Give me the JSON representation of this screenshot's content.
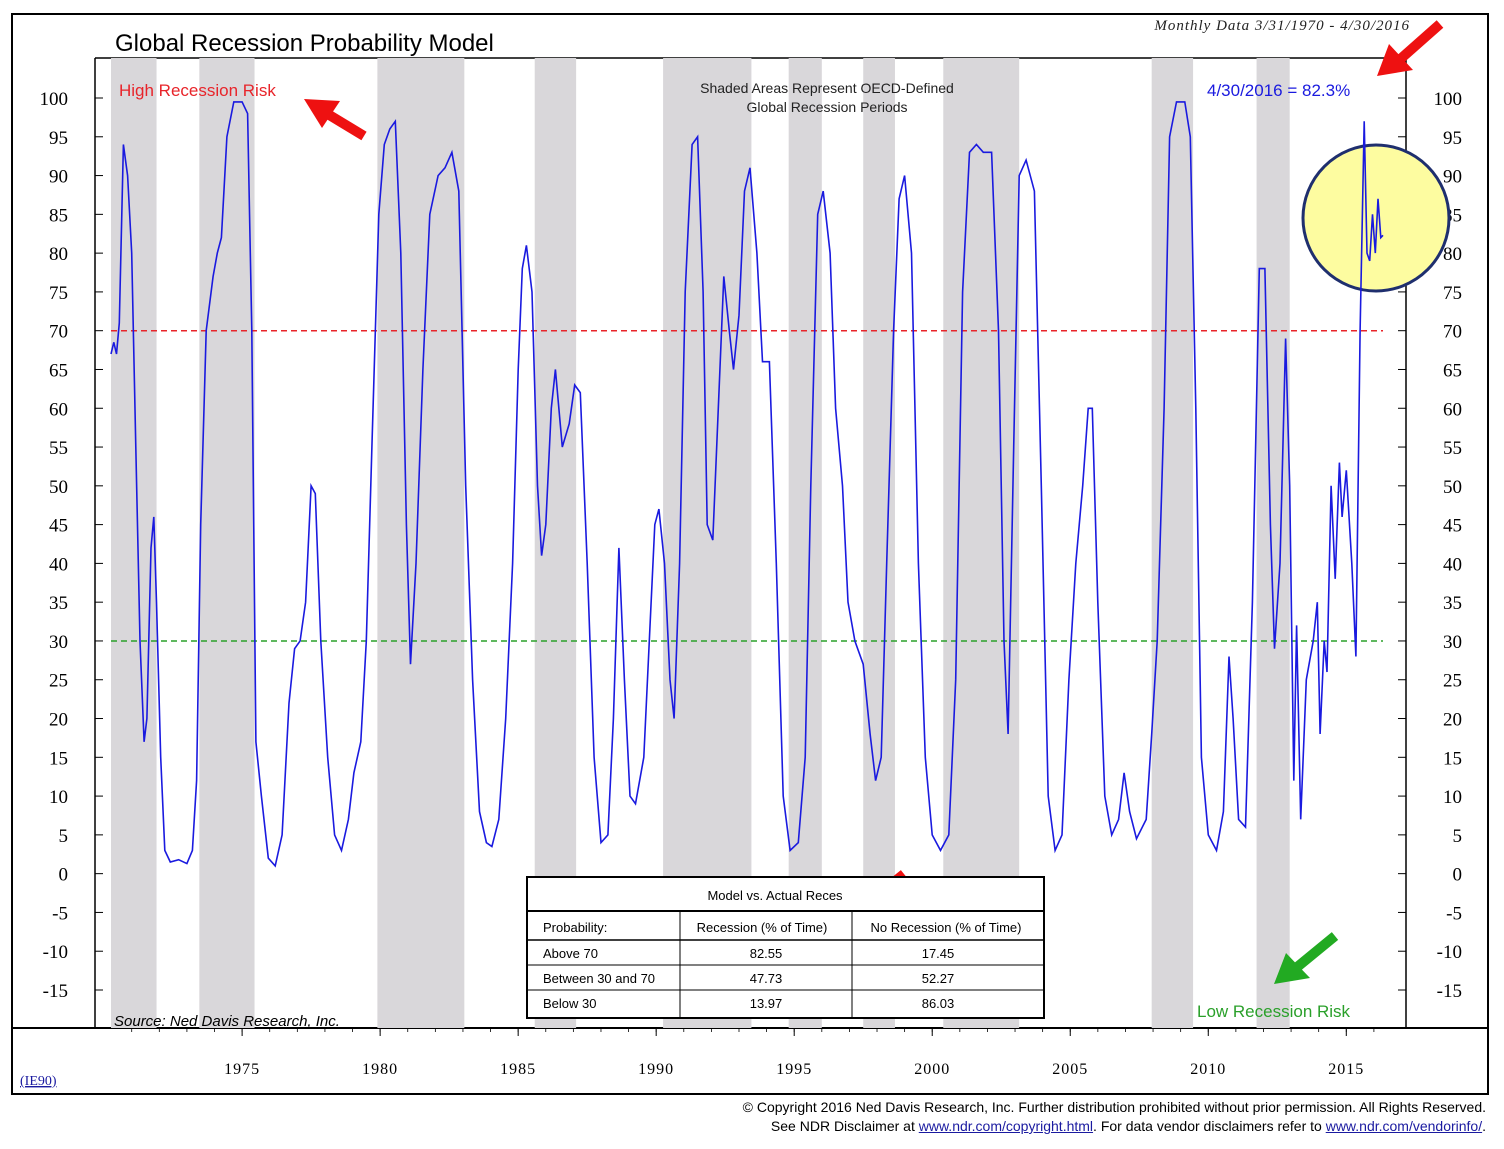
{
  "chart_data": {
    "type": "line",
    "title": "Global Recession Probability Model",
    "data_range": "Monthly Data 3/31/1970 - 4/30/2016",
    "code": "(IE90)",
    "source": "Source: Ned Davis Research, Inc.",
    "ylim": [
      -15,
      100
    ],
    "y_ticks": [
      "100",
      "95",
      "90",
      "85",
      "80",
      "75",
      "70",
      "65",
      "60",
      "55",
      "50",
      "45",
      "40",
      "35",
      "30",
      "25",
      "20",
      "15",
      "10",
      "5",
      "0",
      "-5",
      "-10",
      "-15"
    ],
    "x_ticks": [
      "1975",
      "1980",
      "1985",
      "1990",
      "1995",
      "2000",
      "2005",
      "2010",
      "2015"
    ],
    "xlim": [
      1970.25,
      2016.33
    ],
    "thresholds": [
      {
        "value": 70,
        "color": "#e8242a"
      },
      {
        "value": 30,
        "color": "#2aa02a"
      }
    ],
    "recession_periods": [
      [
        1970.25,
        1971.9
      ],
      [
        1973.45,
        1975.45
      ],
      [
        1979.9,
        1983.05
      ],
      [
        1985.6,
        1987.1
      ],
      [
        1990.25,
        1993.45
      ],
      [
        1994.8,
        1996.0
      ],
      [
        1997.5,
        1998.65
      ],
      [
        2000.4,
        2003.15
      ],
      [
        2007.95,
        2009.45
      ],
      [
        2011.75,
        2012.95
      ]
    ],
    "series": [
      {
        "color": "#1a1adf",
        "points": [
          [
            1970.25,
            67
          ],
          [
            1970.35,
            68.5
          ],
          [
            1970.45,
            67
          ],
          [
            1970.55,
            71
          ],
          [
            1970.7,
            94
          ],
          [
            1970.85,
            90
          ],
          [
            1971.0,
            80
          ],
          [
            1971.15,
            55
          ],
          [
            1971.3,
            30
          ],
          [
            1971.45,
            17
          ],
          [
            1971.55,
            20
          ],
          [
            1971.7,
            42
          ],
          [
            1971.8,
            46
          ],
          [
            1971.9,
            35
          ],
          [
            1972.05,
            15
          ],
          [
            1972.2,
            3
          ],
          [
            1972.4,
            1.5
          ],
          [
            1972.7,
            1.8
          ],
          [
            1973.0,
            1.3
          ],
          [
            1973.2,
            3
          ],
          [
            1973.35,
            12
          ],
          [
            1973.5,
            45
          ],
          [
            1973.7,
            70
          ],
          [
            1973.95,
            77
          ],
          [
            1974.1,
            80
          ],
          [
            1974.25,
            82
          ],
          [
            1974.45,
            95
          ],
          [
            1974.7,
            99.5
          ],
          [
            1975.0,
            99.5
          ],
          [
            1975.2,
            98
          ],
          [
            1975.35,
            70
          ],
          [
            1975.5,
            17
          ],
          [
            1975.7,
            10
          ],
          [
            1975.95,
            2
          ],
          [
            1976.2,
            1
          ],
          [
            1976.45,
            5
          ],
          [
            1976.7,
            22
          ],
          [
            1976.9,
            29
          ],
          [
            1977.1,
            30
          ],
          [
            1977.3,
            35
          ],
          [
            1977.5,
            50
          ],
          [
            1977.65,
            49
          ],
          [
            1977.85,
            30
          ],
          [
            1978.1,
            15
          ],
          [
            1978.35,
            5
          ],
          [
            1978.6,
            3
          ],
          [
            1978.85,
            7
          ],
          [
            1979.05,
            13
          ],
          [
            1979.3,
            17
          ],
          [
            1979.5,
            30
          ],
          [
            1979.7,
            55
          ],
          [
            1979.95,
            85
          ],
          [
            1980.15,
            94
          ],
          [
            1980.35,
            96
          ],
          [
            1980.55,
            97
          ],
          [
            1980.75,
            80
          ],
          [
            1980.95,
            45
          ],
          [
            1981.1,
            27
          ],
          [
            1981.3,
            40
          ],
          [
            1981.55,
            65
          ],
          [
            1981.8,
            85
          ],
          [
            1982.1,
            90
          ],
          [
            1982.35,
            91
          ],
          [
            1982.6,
            93
          ],
          [
            1982.85,
            88
          ],
          [
            1983.1,
            50
          ],
          [
            1983.35,
            25
          ],
          [
            1983.6,
            8
          ],
          [
            1983.85,
            4
          ],
          [
            1984.05,
            3.5
          ],
          [
            1984.3,
            7
          ],
          [
            1984.55,
            20
          ],
          [
            1984.8,
            40
          ],
          [
            1985.0,
            65
          ],
          [
            1985.15,
            78
          ],
          [
            1985.3,
            81
          ],
          [
            1985.5,
            75
          ],
          [
            1985.7,
            50
          ],
          [
            1985.85,
            41
          ],
          [
            1986.0,
            45
          ],
          [
            1986.2,
            60
          ],
          [
            1986.35,
            65
          ],
          [
            1986.6,
            55
          ],
          [
            1986.85,
            58
          ],
          [
            1987.05,
            63
          ],
          [
            1987.25,
            62
          ],
          [
            1987.5,
            40
          ],
          [
            1987.75,
            15
          ],
          [
            1988.0,
            4
          ],
          [
            1988.25,
            5
          ],
          [
            1988.45,
            20
          ],
          [
            1988.65,
            42
          ],
          [
            1988.85,
            25
          ],
          [
            1989.05,
            10
          ],
          [
            1989.25,
            9
          ],
          [
            1989.55,
            15
          ],
          [
            1989.75,
            30
          ],
          [
            1989.95,
            45
          ],
          [
            1990.1,
            47
          ],
          [
            1990.3,
            40
          ],
          [
            1990.5,
            25
          ],
          [
            1990.65,
            20
          ],
          [
            1990.85,
            40
          ],
          [
            1991.05,
            75
          ],
          [
            1991.3,
            94
          ],
          [
            1991.5,
            95
          ],
          [
            1991.7,
            75
          ],
          [
            1991.85,
            45
          ],
          [
            1992.05,
            43
          ],
          [
            1992.25,
            60
          ],
          [
            1992.45,
            77
          ],
          [
            1992.65,
            70
          ],
          [
            1992.8,
            65
          ],
          [
            1993.0,
            72
          ],
          [
            1993.2,
            88
          ],
          [
            1993.4,
            91
          ],
          [
            1993.65,
            80
          ],
          [
            1993.85,
            66
          ],
          [
            1994.1,
            66
          ],
          [
            1994.35,
            40
          ],
          [
            1994.6,
            10
          ],
          [
            1994.85,
            3
          ],
          [
            1995.15,
            4
          ],
          [
            1995.4,
            15
          ],
          [
            1995.6,
            50
          ],
          [
            1995.85,
            85
          ],
          [
            1996.05,
            88
          ],
          [
            1996.3,
            80
          ],
          [
            1996.5,
            60
          ],
          [
            1996.75,
            50
          ],
          [
            1996.95,
            35
          ],
          [
            1997.2,
            30
          ],
          [
            1997.5,
            27
          ],
          [
            1997.75,
            18
          ],
          [
            1997.95,
            12
          ],
          [
            1998.15,
            15
          ],
          [
            1998.35,
            40
          ],
          [
            1998.6,
            70
          ],
          [
            1998.8,
            87
          ],
          [
            1999.0,
            90
          ],
          [
            1999.25,
            80
          ],
          [
            1999.5,
            40
          ],
          [
            1999.75,
            15
          ],
          [
            2000.0,
            5
          ],
          [
            2000.3,
            3
          ],
          [
            2000.6,
            5
          ],
          [
            2000.85,
            25
          ],
          [
            2001.1,
            75
          ],
          [
            2001.35,
            93
          ],
          [
            2001.6,
            94
          ],
          [
            2001.85,
            93
          ],
          [
            2002.15,
            93
          ],
          [
            2002.4,
            70
          ],
          [
            2002.6,
            30
          ],
          [
            2002.75,
            18
          ],
          [
            2002.95,
            55
          ],
          [
            2003.15,
            90
          ],
          [
            2003.4,
            92
          ],
          [
            2003.7,
            88
          ],
          [
            2003.95,
            50
          ],
          [
            2004.2,
            10
          ],
          [
            2004.45,
            3
          ],
          [
            2004.7,
            5
          ],
          [
            2004.95,
            25
          ],
          [
            2005.2,
            40
          ],
          [
            2005.45,
            50
          ],
          [
            2005.65,
            60
          ],
          [
            2005.8,
            60
          ],
          [
            2006.0,
            35
          ],
          [
            2006.25,
            10
          ],
          [
            2006.5,
            5
          ],
          [
            2006.75,
            7
          ],
          [
            2006.95,
            13
          ],
          [
            2007.15,
            8
          ],
          [
            2007.4,
            4.5
          ],
          [
            2007.75,
            7
          ],
          [
            2007.95,
            18
          ],
          [
            2008.15,
            30
          ],
          [
            2008.4,
            60
          ],
          [
            2008.6,
            95
          ],
          [
            2008.85,
            99.5
          ],
          [
            2009.15,
            99.5
          ],
          [
            2009.35,
            95
          ],
          [
            2009.55,
            60
          ],
          [
            2009.75,
            15
          ],
          [
            2010.0,
            5
          ],
          [
            2010.3,
            3
          ],
          [
            2010.55,
            8
          ],
          [
            2010.75,
            28
          ],
          [
            2010.9,
            20
          ],
          [
            2011.1,
            7
          ],
          [
            2011.35,
            6
          ],
          [
            2011.6,
            35
          ],
          [
            2011.85,
            78
          ],
          [
            2012.05,
            78
          ],
          [
            2012.25,
            45
          ],
          [
            2012.4,
            29
          ],
          [
            2012.6,
            40
          ],
          [
            2012.8,
            69
          ],
          [
            2012.95,
            50
          ],
          [
            2013.1,
            12
          ],
          [
            2013.2,
            32
          ],
          [
            2013.35,
            7
          ],
          [
            2013.55,
            25
          ],
          [
            2013.8,
            30
          ],
          [
            2013.95,
            35
          ],
          [
            2014.05,
            18
          ],
          [
            2014.2,
            30
          ],
          [
            2014.3,
            26
          ],
          [
            2014.45,
            50
          ],
          [
            2014.6,
            38
          ],
          [
            2014.75,
            53
          ],
          [
            2014.85,
            46
          ],
          [
            2015.0,
            52
          ],
          [
            2015.2,
            40
          ],
          [
            2015.35,
            28
          ],
          [
            2015.5,
            70
          ],
          [
            2015.65,
            97
          ],
          [
            2015.75,
            80
          ],
          [
            2015.85,
            79
          ],
          [
            2015.95,
            85
          ],
          [
            2016.05,
            80
          ],
          [
            2016.15,
            87
          ],
          [
            2016.25,
            82
          ],
          [
            2016.33,
            82.3
          ]
        ]
      }
    ]
  },
  "annotations": {
    "high_risk": "High Recession Risk",
    "low_risk": "Low Recession Risk",
    "shaded_note_line1": "Shaded Areas Represent OECD-Defined",
    "shaded_note_line2": "Global Recession Periods",
    "latest_value": "4/30/2016 = 82.3%"
  },
  "table": {
    "title": "Model vs. Actual Reces",
    "headers": [
      "Probability:",
      "Recession (% of Time)",
      "No Recession (% of Time)"
    ],
    "rows": [
      [
        "Above 70",
        "82.55",
        "17.45"
      ],
      [
        "Between 30 and 70",
        "47.73",
        "52.27"
      ],
      [
        "Below 30",
        "13.97",
        "86.03"
      ]
    ]
  },
  "footer": {
    "line1": "© Copyright 2016 Ned Davis Research, Inc.  Further distribution prohibited without prior permission.  All Rights Reserved.",
    "line2_a": "See NDR Disclaimer at ",
    "link1": "www.ndr.com/copyright.html",
    "line2_b": ". For data vendor disclaimers refer to ",
    "link2": "www.ndr.com/vendorinfo/",
    "line2_c": "."
  }
}
